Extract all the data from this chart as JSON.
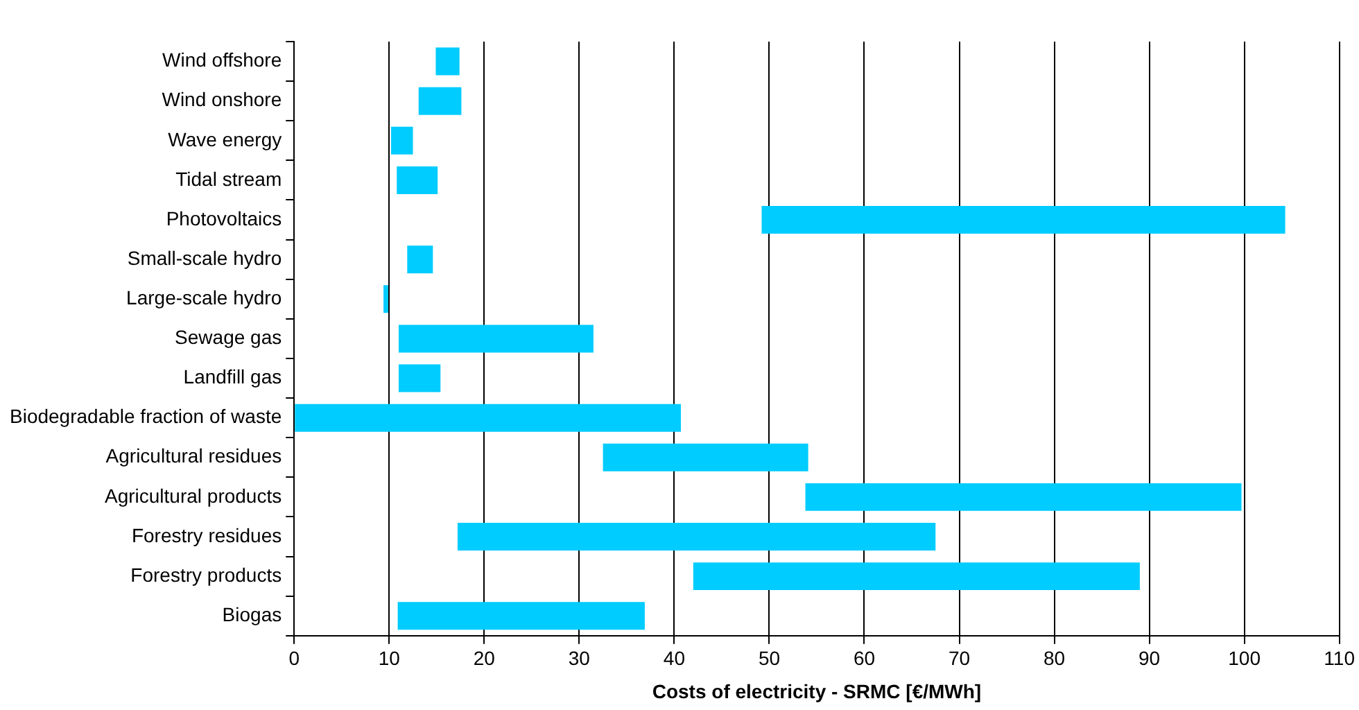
{
  "chart_data": {
    "type": "bar",
    "orientation": "horizontal",
    "xlabel": "Costs of electricity - SRMC [€/MWh]",
    "categories": [
      "Wind offshore",
      "Wind onshore",
      "Wave energy",
      "Tidal stream",
      "Photovoltaics",
      "Small-scale hydro",
      "Large-scale hydro",
      "Sewage gas",
      "Landfill gas",
      "Biodegradable fraction of waste",
      "Agricultural residues",
      "Agricultural products",
      "Forestry residues",
      "Forestry products",
      "Biogas"
    ],
    "base": [
      14.9,
      13.1,
      10.2,
      10.8,
      49.2,
      11.9,
      9.4,
      11.0,
      11.0,
      0,
      32.5,
      53.8,
      17.2,
      42.0,
      10.9
    ],
    "values": [
      2.5,
      4.5,
      2.3,
      4.3,
      55.1,
      2.7,
      0.5,
      20.5,
      4.4,
      40.7,
      21.6,
      45.9,
      50.3,
      47.0,
      26.0
    ],
    "color": "#00ccff",
    "xlim": [
      0,
      110
    ],
    "xticks": [
      0,
      10,
      20,
      30,
      40,
      50,
      60,
      70,
      80,
      90,
      100,
      110
    ],
    "grid": "x",
    "legend": false
  }
}
